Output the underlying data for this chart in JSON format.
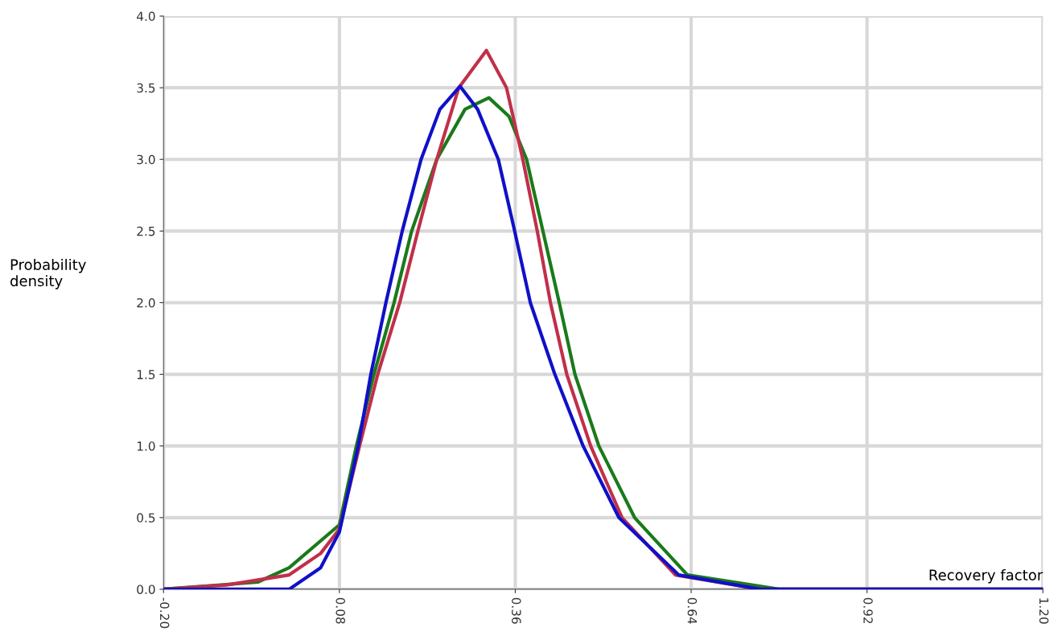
{
  "chart_data": {
    "type": "line",
    "xlabel": "Recovery factor",
    "ylabel": "Probability density",
    "xlim": [
      -0.2,
      1.2
    ],
    "ylim": [
      0,
      4.0
    ],
    "xticks": [
      {
        "value": -0.2,
        "label": "-0.20"
      },
      {
        "value": 0.08,
        "label": "0.08"
      },
      {
        "value": 0.36,
        "label": "0.36"
      },
      {
        "value": 0.64,
        "label": "0.64"
      },
      {
        "value": 0.92,
        "label": "0.92"
      },
      {
        "value": 1.2,
        "label": "1.20"
      }
    ],
    "yticks": [
      {
        "value": 0,
        "label": "0.0"
      },
      {
        "value": 0.5,
        "label": "0.5"
      },
      {
        "value": 1.0,
        "label": "1.0"
      },
      {
        "value": 1.5,
        "label": "1.5"
      },
      {
        "value": 2.0,
        "label": "2.0"
      },
      {
        "value": 2.5,
        "label": "2.5"
      },
      {
        "value": 3.0,
        "label": "3.0"
      },
      {
        "value": 3.5,
        "label": "3.5"
      },
      {
        "value": 4.0,
        "label": "4.0"
      }
    ],
    "grid": true,
    "marker": "none",
    "line_style": "solid",
    "series": [
      {
        "color": "#1010c8",
        "x": [
          -0.2,
          0.0,
          0.05,
          0.08,
          0.11,
          0.13,
          0.154,
          0.18,
          0.21,
          0.24,
          0.272,
          0.3,
          0.333,
          0.359,
          0.384,
          0.423,
          0.468,
          0.525,
          0.62,
          0.75,
          1.2
        ],
        "values": [
          0.0,
          0.0,
          0.15,
          0.4,
          1.0,
          1.5,
          2.0,
          2.5,
          3.0,
          3.35,
          3.51,
          3.35,
          3.0,
          2.5,
          2.0,
          1.5,
          1.0,
          0.5,
          0.1,
          0.0,
          0.0
        ]
      },
      {
        "color": "#c0304a",
        "x": [
          -0.2,
          -0.1,
          0.0,
          0.05,
          0.08,
          0.112,
          0.141,
          0.176,
          0.205,
          0.235,
          0.27,
          0.314,
          0.346,
          0.372,
          0.395,
          0.416,
          0.442,
          0.48,
          0.53,
          0.615,
          0.75,
          1.2
        ],
        "values": [
          0.0,
          0.03,
          0.1,
          0.25,
          0.42,
          1.0,
          1.5,
          2.0,
          2.5,
          3.0,
          3.5,
          3.76,
          3.5,
          3.0,
          2.5,
          2.0,
          1.5,
          1.0,
          0.5,
          0.1,
          0.0,
          0.0
        ]
      },
      {
        "color": "#1a7a1a",
        "x": [
          -0.2,
          -0.05,
          0.0,
          0.08,
          0.107,
          0.135,
          0.167,
          0.195,
          0.235,
          0.28,
          0.318,
          0.35,
          0.378,
          0.404,
          0.43,
          0.455,
          0.493,
          0.55,
          0.634,
          0.78,
          1.2
        ],
        "values": [
          0.0,
          0.05,
          0.15,
          0.45,
          1.0,
          1.5,
          2.0,
          2.5,
          3.0,
          3.35,
          3.43,
          3.3,
          3.0,
          2.5,
          2.0,
          1.5,
          1.0,
          0.5,
          0.1,
          0.0,
          0.0
        ]
      }
    ]
  }
}
